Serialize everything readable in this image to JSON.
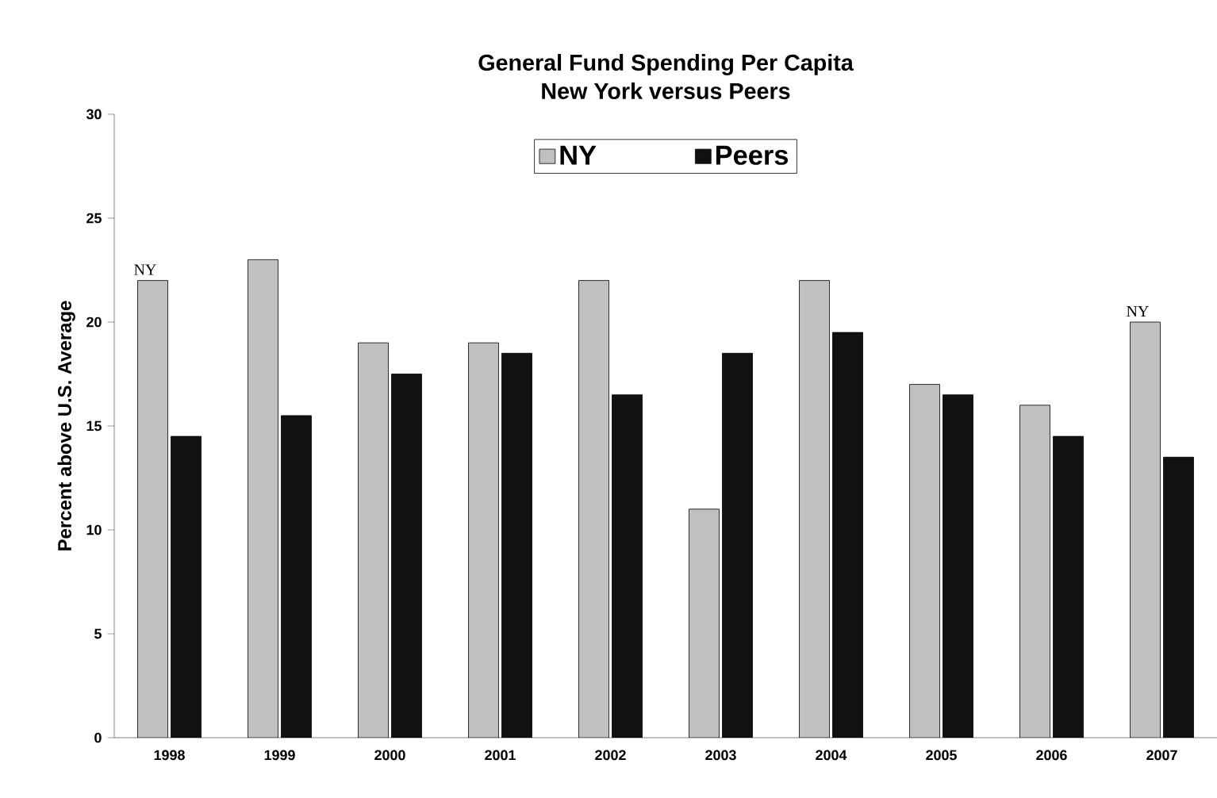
{
  "chart_data": {
    "type": "bar",
    "title": "General Fund Spending Per Capita",
    "subtitle": "New York versus Peers",
    "ylabel": "Percent above U.S. Average",
    "categories": [
      "1998",
      "1999",
      "2000",
      "2001",
      "2002",
      "2003",
      "2004",
      "2005",
      "2006",
      "2007"
    ],
    "series": [
      {
        "name": "NY",
        "color": "#c0c0c0",
        "values": [
          22,
          23,
          19,
          19,
          22,
          11,
          22,
          17,
          16,
          20
        ]
      },
      {
        "name": "Peers",
        "color": "#111111",
        "values": [
          14.5,
          15.5,
          17.5,
          18.5,
          16.5,
          18.5,
          19.5,
          16.5,
          14.5,
          13.5
        ]
      }
    ],
    "ylim": [
      0,
      30
    ],
    "yticks": [
      0,
      5,
      10,
      15,
      20,
      25,
      30
    ],
    "legend": "top",
    "annotations": [
      {
        "text": "NY",
        "x": "1998",
        "y": 22
      },
      {
        "text": "NY",
        "x": "2007",
        "y": 20
      }
    ]
  }
}
